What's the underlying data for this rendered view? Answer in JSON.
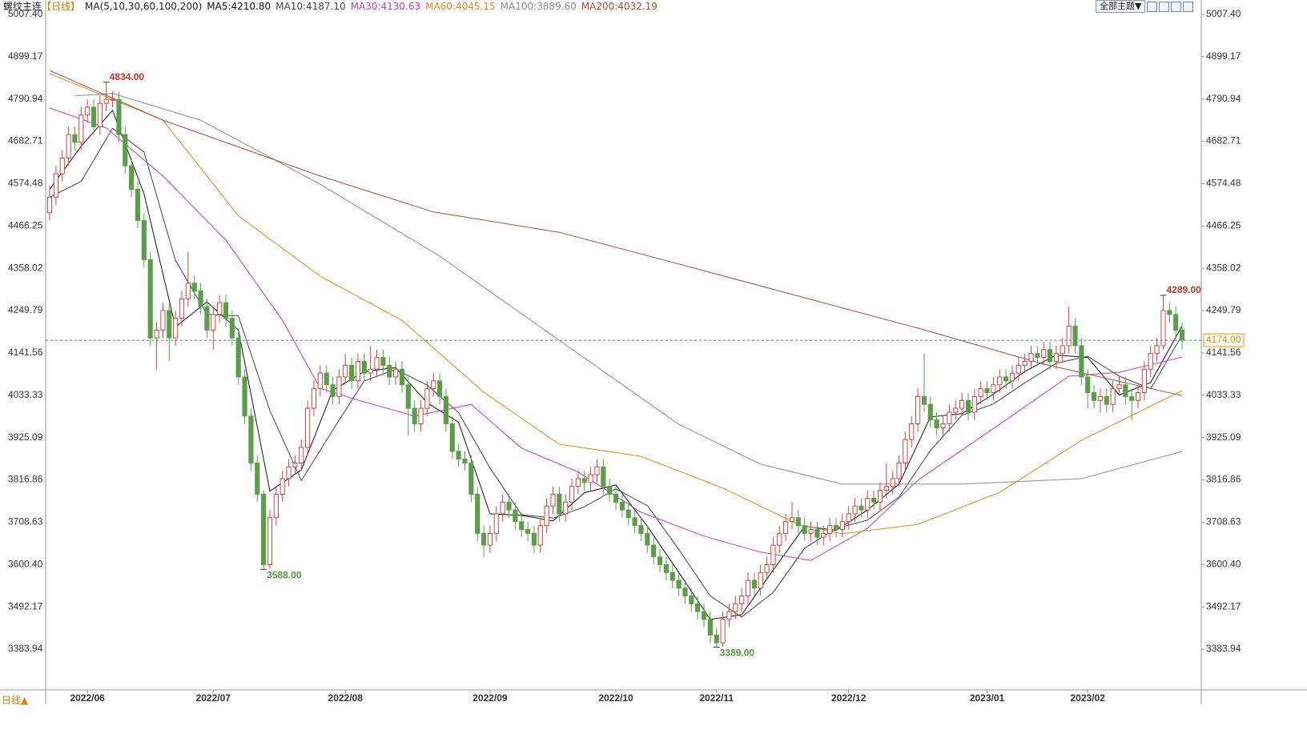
{
  "header": {
    "title": "螺纹主连",
    "period": "【日线】",
    "indicator": "MA(5,10,30,60,100,200)",
    "theme_button": "全部主题▼"
  },
  "footer": {
    "period_button": "日线▲"
  },
  "chart_data": {
    "type": "candlestick",
    "xlim": [
      -0.64,
      183.05
    ],
    "ylim": [
      3279.5,
      5044.2
    ],
    "yticks": [
      {
        "value": 3383.94,
        "label": "3383.94"
      },
      {
        "value": 3492.17,
        "label": "3492.17"
      },
      {
        "value": 3600.4,
        "label": "3600.40"
      },
      {
        "value": 3708.63,
        "label": "3708.63"
      },
      {
        "value": 3816.86,
        "label": "3816.86"
      },
      {
        "value": 3925.09,
        "label": "3925.09"
      },
      {
        "value": 4033.33,
        "label": "4033.33"
      },
      {
        "value": 4141.56,
        "label": "4141.56"
      },
      {
        "value": 4249.79,
        "label": "4249.79"
      },
      {
        "value": 4358.02,
        "label": "4358.02"
      },
      {
        "value": 4466.25,
        "label": "4466.25"
      },
      {
        "value": 4574.48,
        "label": "4574.48"
      },
      {
        "value": 4682.71,
        "label": "4682.71"
      },
      {
        "value": 4790.94,
        "label": "4790.94"
      },
      {
        "value": 4899.17,
        "label": "4899.17"
      },
      {
        "value": 5007.4,
        "label": "5007.40"
      }
    ],
    "xticks": [
      {
        "value": 6,
        "label": "2022/06"
      },
      {
        "value": 26,
        "label": "2022/07"
      },
      {
        "value": 47,
        "label": "2022/08"
      },
      {
        "value": 70,
        "label": "2022/09"
      },
      {
        "value": 90,
        "label": "2022/10"
      },
      {
        "value": 106,
        "label": "2022/11"
      },
      {
        "value": 127,
        "label": "2022/12"
      },
      {
        "value": 149,
        "label": "2023/01"
      },
      {
        "value": 165,
        "label": "2023/02"
      }
    ],
    "grid": false,
    "up_color": "#d9413b",
    "down_color": "#5a9e4a",
    "series": [
      {
        "open": [
          4500,
          4540,
          4600,
          4640,
          4700,
          4680,
          4750,
          4770,
          4720,
          4780,
          4790,
          4790,
          4700,
          4620,
          4560,
          4480,
          4380,
          4180,
          4200,
          4250,
          4180,
          4230,
          4280,
          4320,
          4300,
          4260,
          4200,
          4240,
          4270,
          4230,
          4180,
          4080,
          3980,
          3860,
          3780,
          3600,
          3720,
          3780,
          3820,
          3850,
          3860,
          3900,
          4000,
          4050,
          4090,
          4060,
          4030,
          4080,
          4110,
          4070,
          4120,
          4090,
          4100,
          4130,
          4110,
          4080,
          4100,
          4060,
          4000,
          3960,
          4000,
          4050,
          4070,
          4030,
          3960,
          3890,
          3870,
          3860,
          3780,
          3680,
          3650,
          3680,
          3730,
          3760,
          3740,
          3710,
          3690,
          3680,
          3650,
          3700,
          3750,
          3780,
          3730,
          3760,
          3800,
          3820,
          3810,
          3830,
          3850,
          3800,
          3780,
          3760,
          3740,
          3720,
          3700,
          3680,
          3650,
          3620,
          3600,
          3580,
          3560,
          3540,
          3520,
          3500,
          3480,
          3460,
          3420,
          3400,
          3460,
          3480,
          3500,
          3520,
          3560,
          3540,
          3580,
          3600,
          3650,
          3680,
          3710,
          3720,
          3700,
          3680,
          3690,
          3670,
          3680,
          3700,
          3690,
          3710,
          3730,
          3750,
          3740,
          3770,
          3760,
          3790,
          3800,
          3820,
          3860,
          3920,
          3960,
          4030,
          4010,
          3970,
          3950,
          3960,
          3990,
          4000,
          4020,
          3990,
          4030,
          4050,
          4040,
          4060,
          4080,
          4070,
          4090,
          4110,
          4120,
          4140,
          4130,
          4150,
          4120,
          4140,
          4160,
          4210,
          4160,
          4080,
          4040,
          4020,
          4030,
          4010,
          4050,
          4060,
          4030,
          4020,
          4040,
          4100,
          4140,
          4160,
          4250,
          4240,
          4200
        ],
        "high": [
          4570,
          4620,
          4660,
          4720,
          4720,
          4770,
          4790,
          4790,
          4800,
          4834,
          4810,
          4810,
          4720,
          4640,
          4580,
          4500,
          4400,
          4220,
          4270,
          4270,
          4250,
          4300,
          4400,
          4340,
          4320,
          4280,
          4260,
          4290,
          4290,
          4250,
          4200,
          4100,
          4000,
          3880,
          3790,
          3740,
          3800,
          3840,
          3870,
          3880,
          3920,
          4020,
          4070,
          4110,
          4110,
          4080,
          4100,
          4140,
          4130,
          4140,
          4140,
          4160,
          4150,
          4150,
          4130,
          4120,
          4120,
          4080,
          4020,
          4020,
          4070,
          4090,
          4090,
          4050,
          3980,
          3910,
          3890,
          3880,
          3800,
          3700,
          3700,
          3750,
          3780,
          3780,
          3760,
          3730,
          3710,
          3700,
          3720,
          3770,
          3800,
          3800,
          3780,
          3820,
          3840,
          3840,
          3850,
          3870,
          3870,
          3820,
          3800,
          3780,
          3760,
          3740,
          3720,
          3700,
          3670,
          3640,
          3620,
          3600,
          3580,
          3560,
          3540,
          3520,
          3500,
          3480,
          3440,
          3480,
          3500,
          3520,
          3540,
          3580,
          3580,
          3600,
          3620,
          3670,
          3700,
          3730,
          3760,
          3740,
          3720,
          3710,
          3710,
          3700,
          3720,
          3720,
          3730,
          3750,
          3770,
          3770,
          3790,
          3790,
          3810,
          3860,
          3840,
          3880,
          3940,
          3980,
          4050,
          4140,
          4030,
          3990,
          3980,
          4010,
          4020,
          4040,
          4040,
          4050,
          4070,
          4070,
          4080,
          4100,
          4100,
          4110,
          4130,
          4140,
          4160,
          4160,
          4170,
          4170,
          4160,
          4180,
          4260,
          4230,
          4180,
          4100,
          4060,
          4050,
          4050,
          4070,
          4080,
          4080,
          4050,
          4060,
          4120,
          4160,
          4180,
          4289,
          4270,
          4260,
          4220
        ],
        "low": [
          4480,
          4520,
          4580,
          4620,
          4660,
          4660,
          4730,
          4700,
          4700,
          4760,
          4770,
          4680,
          4600,
          4540,
          4460,
          4360,
          4160,
          4100,
          4180,
          4120,
          4160,
          4210,
          4260,
          4280,
          4240,
          4180,
          4150,
          4220,
          4210,
          4160,
          4060,
          3960,
          3840,
          3760,
          3588,
          3590,
          3700,
          3760,
          3800,
          3830,
          3840,
          3880,
          3980,
          4030,
          4040,
          4010,
          4010,
          4060,
          4050,
          4050,
          4070,
          4070,
          4080,
          4090,
          4060,
          4060,
          4040,
          3930,
          3940,
          3940,
          3980,
          4030,
          4010,
          3940,
          3870,
          3850,
          3840,
          3760,
          3660,
          3620,
          3630,
          3660,
          3710,
          3720,
          3690,
          3670,
          3660,
          3630,
          3630,
          3680,
          3730,
          3710,
          3710,
          3740,
          3780,
          3790,
          3790,
          3810,
          3780,
          3760,
          3740,
          3720,
          3700,
          3680,
          3660,
          3630,
          3600,
          3580,
          3560,
          3540,
          3520,
          3500,
          3480,
          3460,
          3440,
          3400,
          3389,
          3390,
          3440,
          3460,
          3480,
          3500,
          3520,
          3520,
          3560,
          3580,
          3630,
          3660,
          3690,
          3680,
          3660,
          3660,
          3650,
          3650,
          3660,
          3670,
          3670,
          3690,
          3710,
          3720,
          3720,
          3740,
          3740,
          3770,
          3780,
          3800,
          3840,
          3900,
          3940,
          3990,
          3950,
          3930,
          3930,
          3940,
          3970,
          3980,
          3970,
          3970,
          4010,
          4020,
          4020,
          4040,
          4050,
          4050,
          4070,
          4090,
          4100,
          4110,
          4110,
          4100,
          4100,
          4120,
          4140,
          4140,
          4060,
          4000,
          4000,
          3990,
          3990,
          3990,
          4040,
          4010,
          3970,
          4000,
          4020,
          4080,
          4120,
          4150,
          4220,
          4180,
          4150
        ],
        "close": [
          4540,
          4600,
          4640,
          4700,
          4680,
          4750,
          4770,
          4720,
          4780,
          4790,
          4790,
          4700,
          4620,
          4560,
          4480,
          4380,
          4180,
          4200,
          4250,
          4180,
          4230,
          4280,
          4320,
          4300,
          4260,
          4200,
          4240,
          4270,
          4230,
          4180,
          4080,
          3980,
          3860,
          3780,
          3600,
          3720,
          3780,
          3820,
          3850,
          3860,
          3900,
          4000,
          4050,
          4090,
          4060,
          4030,
          4080,
          4110,
          4070,
          4120,
          4090,
          4100,
          4130,
          4110,
          4080,
          4100,
          4060,
          4000,
          3960,
          4000,
          4050,
          4070,
          4030,
          3960,
          3890,
          3870,
          3860,
          3780,
          3680,
          3650,
          3680,
          3730,
          3760,
          3740,
          3710,
          3690,
          3680,
          3650,
          3700,
          3750,
          3780,
          3730,
          3760,
          3800,
          3820,
          3810,
          3830,
          3850,
          3800,
          3780,
          3760,
          3740,
          3720,
          3700,
          3680,
          3650,
          3620,
          3600,
          3580,
          3560,
          3540,
          3520,
          3500,
          3480,
          3460,
          3420,
          3400,
          3460,
          3480,
          3500,
          3520,
          3560,
          3540,
          3580,
          3600,
          3650,
          3680,
          3710,
          3720,
          3700,
          3680,
          3690,
          3670,
          3680,
          3700,
          3690,
          3710,
          3730,
          3750,
          3740,
          3770,
          3760,
          3790,
          3800,
          3820,
          3860,
          3920,
          3960,
          4030,
          4010,
          3970,
          3950,
          3960,
          3990,
          4000,
          4020,
          3990,
          4030,
          4050,
          4040,
          4060,
          4080,
          4070,
          4090,
          4110,
          4120,
          4140,
          4130,
          4150,
          4120,
          4140,
          4160,
          4210,
          4160,
          4080,
          4040,
          4020,
          4030,
          4010,
          4050,
          4060,
          4030,
          4020,
          4040,
          4100,
          4140,
          4160,
          4250,
          4240,
          4200,
          4174
        ]
      }
    ],
    "lines": [
      {
        "label": "MA5:4210.80",
        "color": "#111111",
        "x": [
          0,
          5,
          10,
          15,
          20,
          25,
          30,
          35,
          40,
          45,
          50,
          55,
          60,
          65,
          70,
          75,
          80,
          85,
          90,
          95,
          100,
          105,
          110,
          115,
          120,
          125,
          130,
          135,
          140,
          145,
          150,
          155,
          160,
          165,
          170,
          175,
          180
        ],
        "values": [
          4560,
          4670,
          4762,
          4548,
          4208,
          4272,
          4200,
          3788,
          3842,
          4046,
          4094,
          4104,
          4014,
          3964,
          3730,
          3726,
          3712,
          3784,
          3804,
          3698,
          3580,
          3460,
          3472,
          3586,
          3698,
          3688,
          3740,
          3806,
          3978,
          3986,
          4036,
          4094,
          4136,
          4130,
          4034,
          4066,
          4210.8
        ]
      },
      {
        "label": "MA10:4187.10",
        "color": "#444444",
        "x": [
          0,
          5,
          10,
          15,
          20,
          25,
          30,
          35,
          40,
          45,
          50,
          55,
          60,
          65,
          70,
          75,
          80,
          85,
          90,
          95,
          100,
          105,
          110,
          115,
          120,
          125,
          130,
          135,
          140,
          145,
          150,
          155,
          160,
          165,
          170,
          175,
          180
        ],
        "values": [
          4540,
          4580,
          4716,
          4655,
          4378,
          4240,
          4236,
          3994,
          3815,
          3944,
          4070,
          4099,
          4059,
          3989,
          3847,
          3728,
          3719,
          3748,
          3794,
          3751,
          3639,
          3520,
          3466,
          3529,
          3642,
          3693,
          3714,
          3773,
          3892,
          3982,
          4011,
          4065,
          4115,
          4133,
          4082,
          4050,
          4187.1
        ]
      },
      {
        "label": "MA30:4130.63",
        "color": "#c23cc4",
        "x": [
          0,
          9,
          18,
          28,
          37,
          43,
          49,
          58,
          67,
          75,
          84,
          94,
          104,
          113,
          121,
          130,
          138,
          151,
          162,
          170,
          180
        ],
        "values": [
          4768,
          4717,
          4594,
          4430,
          4225,
          4051,
          4021,
          3980,
          4010,
          3898,
          3837,
          3734,
          3673,
          3632,
          3611,
          3693,
          3816,
          3959,
          4082,
          4092,
          4130.63
        ]
      },
      {
        "label": "MA60:4045.15",
        "color": "#e08a1e",
        "x": [
          0,
          18,
          30,
          43,
          56,
          69,
          81,
          94,
          107,
          119,
          126,
          138,
          151,
          164,
          180
        ],
        "values": [
          4856,
          4737,
          4492,
          4338,
          4225,
          4041,
          3908,
          3877,
          3796,
          3703,
          3679,
          3703,
          3785,
          3918,
          4045.15
        ]
      },
      {
        "label": "MA100:3889.60",
        "color": "#8c8c8c",
        "x": [
          4,
          10,
          24,
          43,
          62,
          81,
          100,
          113,
          126,
          145,
          164,
          180
        ],
        "values": [
          4799,
          4805,
          4737,
          4573,
          4389,
          4174,
          3959,
          3857,
          3806,
          3806,
          3820,
          3889.6
        ]
      },
      {
        "label": "MA200:4032.19",
        "color": "#a0523c",
        "x": [
          0,
          18,
          43,
          61,
          81,
          100,
          119,
          138,
          158,
          180
        ],
        "values": [
          4864,
          4737,
          4594,
          4502,
          4450,
          4369,
          4287,
          4205,
          4113,
          4032.19
        ]
      }
    ],
    "annotations": [
      {
        "label": "4834.00",
        "x": 9,
        "y": 4834,
        "color": "#c0392b"
      },
      {
        "label": "3588.00",
        "x": 34,
        "y": 3588,
        "color": "#4e9a3e"
      },
      {
        "label": "3389.00",
        "x": 106,
        "y": 3389,
        "color": "#4e9a3e"
      },
      {
        "label": "4289.00",
        "x": 177,
        "y": 4289,
        "color": "#c0392b"
      }
    ],
    "last_price": {
      "value": 4174,
      "label": "4174.00",
      "color": "#e69500",
      "line_color": "#3d7cc9"
    }
  }
}
